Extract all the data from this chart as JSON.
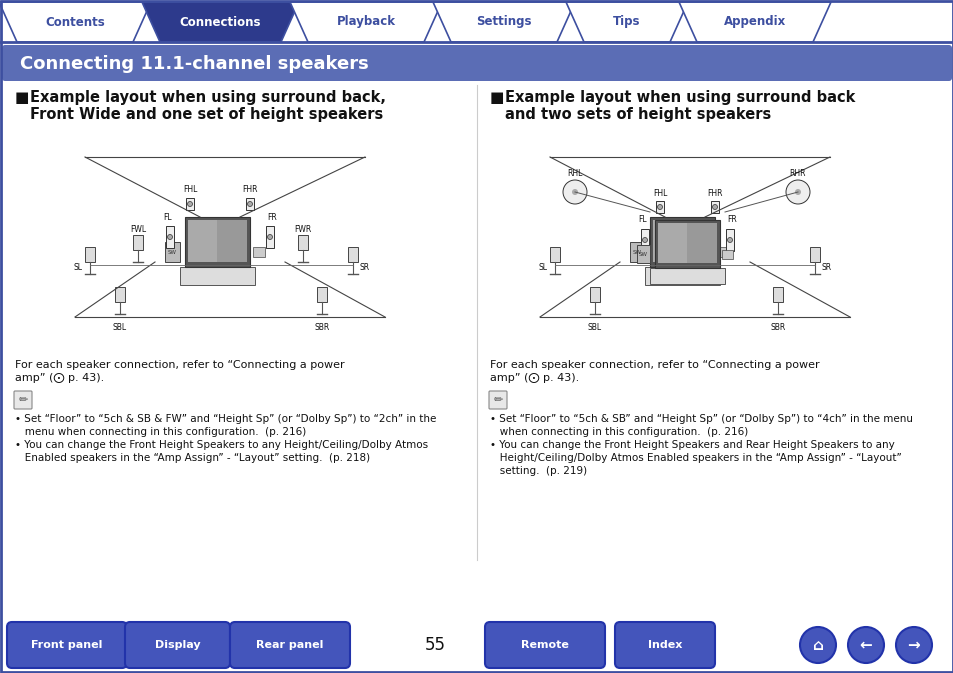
{
  "title": "Connecting 11.1-channel speakers",
  "title_bg": "#5b6db5",
  "title_color": "#ffffff",
  "tab_labels": [
    "Contents",
    "Connections",
    "Playback",
    "Settings",
    "Tips",
    "Appendix"
  ],
  "tab_active": 1,
  "tab_active_bg": "#2d3a8c",
  "tab_inactive_bg": "#ffffff",
  "tab_border": "#3d4fa0",
  "bottom_buttons": [
    "Front panel",
    "Display",
    "Rear panel",
    "Remote",
    "Index"
  ],
  "bottom_btn_bg": "#4455bb",
  "bottom_btn_color": "#ffffff",
  "page_number": "55",
  "bg_color": "#ffffff",
  "border_color": "#3d4fa0",
  "sec1_line1": "Example layout when using surround back,",
  "sec1_line2": "Front Wide and one set of height speakers",
  "sec2_line1": "Example layout when using surround back",
  "sec2_line2": "and two sets of height speakers",
  "ref_text": "For each speaker connection, refer to “Connecting a power\namp” (⨀ p. 43).",
  "note1_text": "• Set “Floor” to “5ch & SB & FW” and “Height Sp” (or “Dolby Sp”) to “2ch” in the\n   menu when connecting in this configuration.  (p. 216)\n• You can change the Front Height Speakers to any Height/Ceiling/Dolby Atmos\n   Enabled speakers in the “Amp Assign” - “Layout” setting.  (p. 218)",
  "note2_text": "• Set “Floor” to “5ch & SB” and “Height Sp” (or “Dolby Sp”) to “4ch” in the menu\n   when connecting in this configuration.  (p. 216)\n• You can change the Front Height Speakers and Rear Height Speakers to any\n   Height/Ceiling/Dolby Atmos Enabled speakers in the “Amp Assign” - “Layout”\n   setting.  (p. 219)"
}
